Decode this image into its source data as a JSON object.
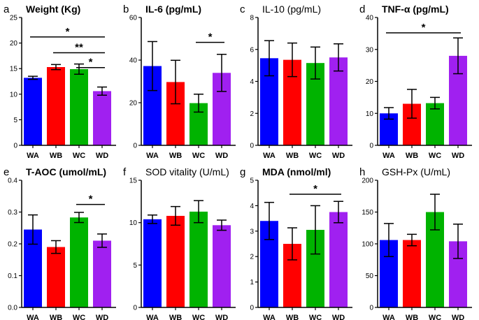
{
  "chart_data": [
    {
      "type": "bar",
      "panel_letter": "a",
      "title": "Weight (Kg)",
      "title_bold": true,
      "categories": [
        "WA",
        "WB",
        "WC",
        "WD"
      ],
      "values": [
        13.2,
        15.3,
        14.9,
        10.6
      ],
      "errors": [
        0.3,
        0.5,
        1.0,
        0.8
      ],
      "ylim": [
        0,
        25
      ],
      "yticks": [
        0,
        5,
        10,
        15,
        20,
        25
      ],
      "ytick_labels": [
        "0",
        "5",
        "10",
        "15",
        "20",
        "25"
      ],
      "significance": [
        {
          "from": "WA",
          "to": "WD",
          "label": "*",
          "y": 21.2
        },
        {
          "from": "WB",
          "to": "WD",
          "label": "**",
          "y": 18.1
        },
        {
          "from": "WC",
          "to": "WD",
          "label": "*",
          "y": 15.2
        }
      ]
    },
    {
      "type": "bar",
      "panel_letter": "b",
      "title": "IL-6 (pg/mL)",
      "title_bold": true,
      "categories": [
        "WA",
        "WB",
        "WC",
        "WD"
      ],
      "values": [
        37.2,
        29.7,
        19.8,
        34.0
      ],
      "errors": [
        11.5,
        10.2,
        4.2,
        8.7
      ],
      "ylim": [
        0,
        60
      ],
      "yticks": [
        0,
        20,
        40,
        60
      ],
      "ytick_labels": [
        "0",
        "20",
        "40",
        "60"
      ],
      "significance": [
        {
          "from": "WC",
          "to": "WD",
          "label": "*",
          "y": 48.3
        }
      ]
    },
    {
      "type": "bar",
      "panel_letter": "c",
      "title": "IL-10 (pg/mL)",
      "title_bold": false,
      "categories": [
        "WA",
        "WB",
        "WC",
        "WD"
      ],
      "values": [
        5.45,
        5.35,
        5.15,
        5.5
      ],
      "errors": [
        1.1,
        1.05,
        1.0,
        0.85
      ],
      "ylim": [
        0,
        8
      ],
      "yticks": [
        0,
        2,
        4,
        6,
        8
      ],
      "ytick_labels": [
        "0",
        "2",
        "4",
        "6",
        "8"
      ],
      "significance": []
    },
    {
      "type": "bar",
      "panel_letter": "d",
      "title": "TNF-α (pg/mL)",
      "title_bold": true,
      "categories": [
        "WA",
        "WB",
        "WC",
        "WD"
      ],
      "values": [
        10.0,
        13.0,
        13.2,
        28.0
      ],
      "errors": [
        1.8,
        4.5,
        1.8,
        5.6
      ],
      "ylim": [
        0,
        40
      ],
      "yticks": [
        0,
        10,
        20,
        30,
        40
      ],
      "ytick_labels": [
        "0",
        "10",
        "20",
        "30",
        "40"
      ],
      "significance": [
        {
          "from": "WA",
          "to": "WD",
          "label": "*",
          "y": 35.2
        }
      ]
    },
    {
      "type": "bar",
      "panel_letter": "e",
      "title": "T-AOC (umol/mL)",
      "title_bold": true,
      "categories": [
        "WA",
        "WB",
        "WC",
        "WD"
      ],
      "values": [
        0.245,
        0.19,
        0.283,
        0.21
      ],
      "errors": [
        0.046,
        0.02,
        0.016,
        0.021
      ],
      "ylim": [
        0,
        0.4
      ],
      "yticks": [
        0,
        0.1,
        0.2,
        0.3,
        0.4
      ],
      "ytick_labels": [
        "0.0",
        "0.1",
        "0.2",
        "0.3",
        "0.4"
      ],
      "significance": [
        {
          "from": "WC",
          "to": "WD",
          "label": "*",
          "y": 0.324
        }
      ]
    },
    {
      "type": "bar",
      "panel_letter": "f",
      "title": "SOD vitality (U/mL)",
      "title_bold": false,
      "categories": [
        "WA",
        "WB",
        "WC",
        "WD"
      ],
      "values": [
        10.4,
        10.8,
        11.3,
        9.7
      ],
      "errors": [
        0.5,
        1.1,
        1.3,
        0.6
      ],
      "ylim": [
        0,
        15
      ],
      "yticks": [
        0,
        5,
        10,
        15
      ],
      "ytick_labels": [
        "0",
        "5",
        "10",
        "15"
      ],
      "significance": []
    },
    {
      "type": "bar",
      "panel_letter": "g",
      "title": "MDA (nmol/ml)",
      "title_bold": true,
      "categories": [
        "WA",
        "WB",
        "WC",
        "WD"
      ],
      "values": [
        3.4,
        2.5,
        3.05,
        3.75
      ],
      "errors": [
        0.73,
        0.63,
        0.95,
        0.42
      ],
      "ylim": [
        0,
        5
      ],
      "yticks": [
        0,
        1,
        2,
        3,
        4,
        5
      ],
      "ytick_labels": [
        "0",
        "1",
        "2",
        "3",
        "4",
        "5"
      ],
      "significance": [
        {
          "from": "WB",
          "to": "WD",
          "label": "*",
          "y": 4.45
        }
      ]
    },
    {
      "type": "bar",
      "panel_letter": "h",
      "title": "GSH-Px (U/mL)",
      "title_bold": false,
      "categories": [
        "WA",
        "WB",
        "WC",
        "WD"
      ],
      "values": [
        106,
        106,
        150,
        104
      ],
      "errors": [
        26,
        9,
        28,
        27
      ],
      "ylim": [
        0,
        200
      ],
      "yticks": [
        0,
        50,
        100,
        150,
        200
      ],
      "ytick_labels": [
        "0",
        "50",
        "100",
        "150",
        "200"
      ],
      "significance": []
    }
  ],
  "colors": {
    "WA": "#0000ff",
    "WB": "#ff0000",
    "WC": "#00b300",
    "WD": "#a020f0",
    "axis": "#000000",
    "text": "#000000"
  }
}
